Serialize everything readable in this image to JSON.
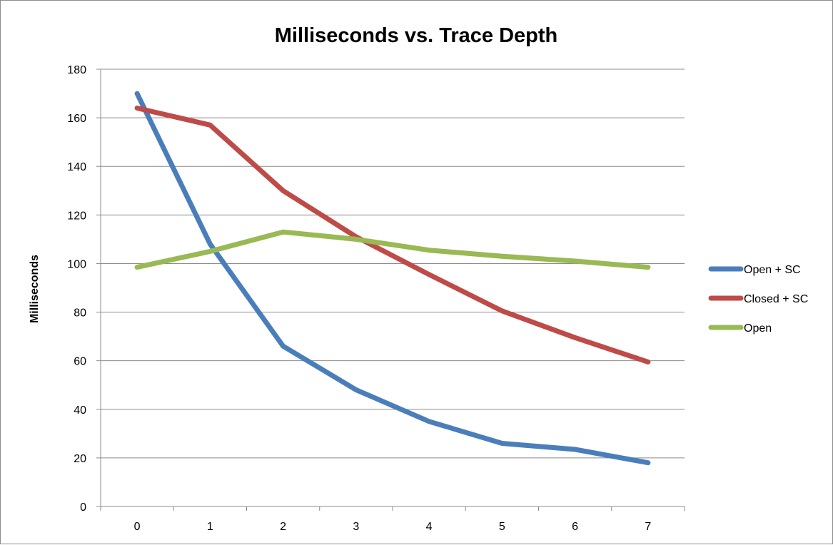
{
  "chart_data": {
    "type": "line",
    "title": "Milliseconds vs. Trace Depth",
    "xlabel": "",
    "ylabel": "Milliseconds",
    "x": [
      0,
      1,
      2,
      3,
      4,
      5,
      6,
      7
    ],
    "x_tick_labels": [
      "0",
      "1",
      "2",
      "3",
      "4",
      "5",
      "6",
      "7"
    ],
    "y_tick_labels": [
      "0",
      "20",
      "40",
      "60",
      "80",
      "100",
      "120",
      "140",
      "160",
      "180"
    ],
    "ylim": [
      0,
      180
    ],
    "grid": "horizontal",
    "legend_position": "right",
    "series": [
      {
        "name": "Open + SC",
        "color": "#4a7ebb",
        "values": [
          170,
          108,
          66,
          48,
          35,
          26,
          23.5,
          18
        ]
      },
      {
        "name": "Closed + SC",
        "color": "#be4b48",
        "values": [
          164,
          157,
          130,
          111,
          95.5,
          80.5,
          69.5,
          59.5
        ]
      },
      {
        "name": "Open",
        "color": "#98b954",
        "values": [
          98.5,
          105,
          113,
          110,
          105.5,
          103,
          101,
          98.5
        ]
      }
    ]
  }
}
